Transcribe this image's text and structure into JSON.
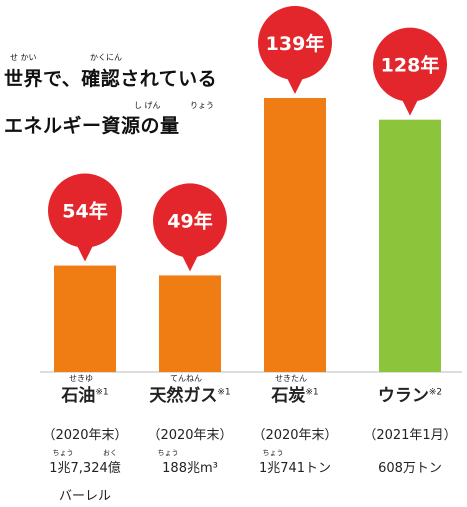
{
  "chart_data": {
    "type": "bar",
    "title_line1": "世界で、確認されている",
    "title_line2": "エネルギー資源の量",
    "title_ruby": [
      "せ かい",
      "かくにん",
      "し  げん",
      "りょう"
    ],
    "unit": "年",
    "ylim": [
      0,
      150
    ],
    "categories": [
      "石油",
      "天然ガス",
      "石炭",
      "ウラン"
    ],
    "category_ruby": [
      "せきゆ",
      "てんねん",
      "せきたん",
      ""
    ],
    "category_notes": [
      "※1",
      "※1",
      "※1",
      "※2"
    ],
    "values": [
      54,
      49,
      139,
      128
    ],
    "value_labels": [
      "54年",
      "49年",
      "139年",
      "128年"
    ],
    "bar_colors": [
      "#f07d14",
      "#f07d14",
      "#f07d14",
      "#8cc43c"
    ],
    "marker_color": "#e3262b",
    "years": [
      "（2020年末）",
      "（2020年末）",
      "（2020年末）",
      "（2021年1月）"
    ],
    "reserves": [
      "1兆7,324億",
      "188兆m³",
      "1兆741トン",
      "608万トン"
    ],
    "reserves_ruby": [
      [
        "ちょう",
        "おく"
      ],
      [
        "ちょう"
      ],
      [
        "ちょう"
      ],
      []
    ],
    "reserves_extra": [
      "バーレル",
      "",
      "",
      ""
    ]
  }
}
